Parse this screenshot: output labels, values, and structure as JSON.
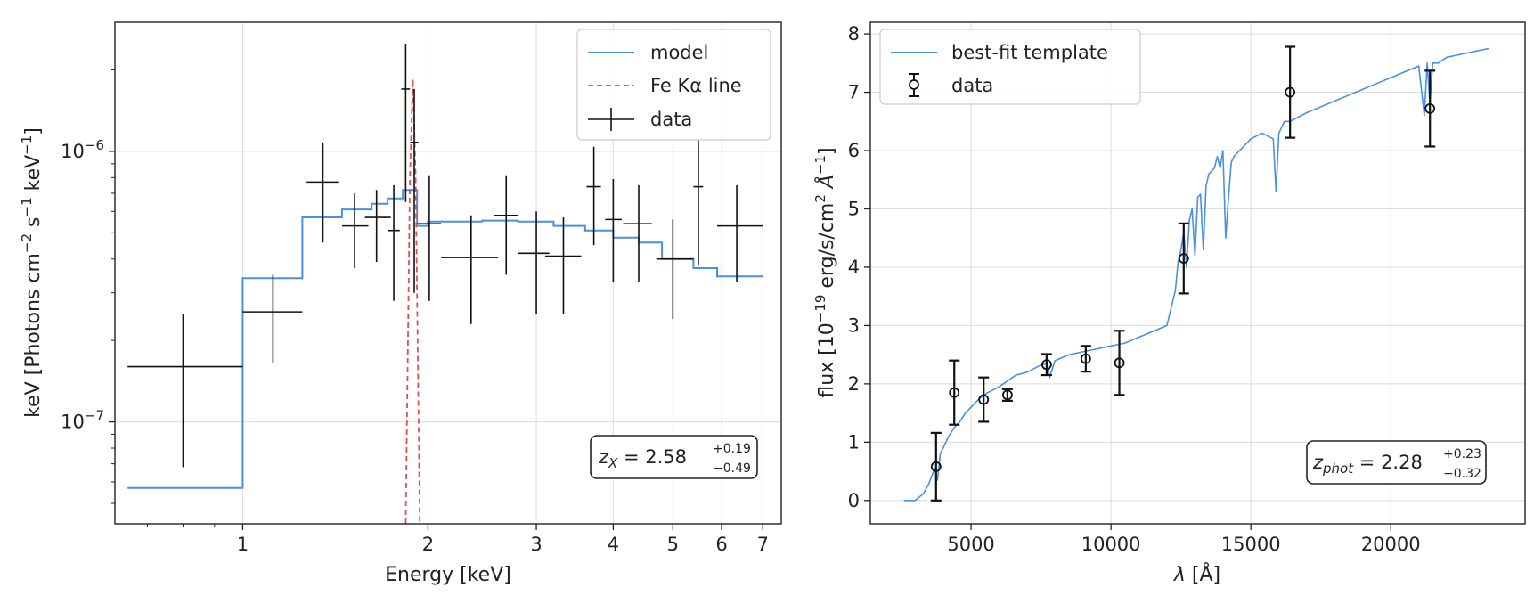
{
  "chart_data": [
    {
      "type": "line",
      "xlabel": "Energy [keV]",
      "ylabel_main": "keV [Photons cm",
      "ylabel_exp1": "−2",
      "ylabel_mid": " s",
      "ylabel_exp2": "−1",
      "ylabel_mid2": " keV",
      "ylabel_exp3": "−1",
      "ylabel_end": "]",
      "x_scale": "log",
      "y_scale": "log",
      "xlim": [
        0.62,
        7.5
      ],
      "ylim": [
        4.2e-08,
        3e-06
      ],
      "xticks": [
        1,
        2,
        3,
        4,
        5,
        6,
        7
      ],
      "xtick_labels": [
        "1",
        "2",
        "3",
        "4",
        "5",
        "6",
        "7"
      ],
      "yticks": [
        1e-07,
        1e-06
      ],
      "ytick_bases": [
        "10",
        "10"
      ],
      "ytick_exps": [
        "−7",
        "−6"
      ],
      "grid": true,
      "legend_position": "top-right",
      "legend": [
        "model",
        "Fe Kα line",
        "data"
      ],
      "annotation": {
        "lhs": "z",
        "sub": "X",
        "eq": " = 2.58",
        "sup": "+0.19",
        "low": "−0.49"
      },
      "colors": {
        "model": "#4a90e2",
        "line": "#e05050",
        "data": "#111111"
      },
      "model_steps": [
        [
          0.65,
          5.7e-08
        ],
        [
          1.0,
          5.7e-08
        ],
        [
          1.0,
          3.4e-07
        ],
        [
          1.25,
          3.4e-07
        ],
        [
          1.25,
          5.7e-07
        ],
        [
          1.45,
          5.7e-07
        ],
        [
          1.45,
          6.1e-07
        ],
        [
          1.62,
          6.1e-07
        ],
        [
          1.62,
          6.4e-07
        ],
        [
          1.72,
          6.4e-07
        ],
        [
          1.72,
          6.7e-07
        ],
        [
          1.82,
          6.7e-07
        ],
        [
          1.82,
          7.2e-07
        ],
        [
          1.92,
          7.2e-07
        ],
        [
          1.92,
          5.3e-07
        ],
        [
          2.0,
          5.3e-07
        ],
        [
          2.0,
          5.5e-07
        ],
        [
          2.45,
          5.5e-07
        ],
        [
          2.45,
          5.55e-07
        ],
        [
          2.8,
          5.55e-07
        ],
        [
          2.8,
          5.5e-07
        ],
        [
          3.2,
          5.5e-07
        ],
        [
          3.2,
          5.3e-07
        ],
        [
          3.6,
          5.3e-07
        ],
        [
          3.6,
          5.1e-07
        ],
        [
          4.0,
          5.1e-07
        ],
        [
          4.0,
          4.8e-07
        ],
        [
          4.4,
          4.8e-07
        ],
        [
          4.4,
          4.6e-07
        ],
        [
          4.8,
          4.6e-07
        ],
        [
          4.8,
          4e-07
        ],
        [
          5.4,
          4e-07
        ],
        [
          5.4,
          3.7e-07
        ],
        [
          5.9,
          3.7e-07
        ],
        [
          5.9,
          3.45e-07
        ],
        [
          7.0,
          3.45e-07
        ]
      ],
      "fe_line_x": [
        1.84,
        1.87,
        1.89,
        1.91,
        1.94
      ],
      "fe_line_y": [
        4.2e-08,
        8e-07,
        1.85e-06,
        8e-07,
        4.2e-08
      ],
      "data_points": [
        {
          "x": 0.8,
          "xlo": 0.65,
          "xhi": 1.0,
          "y": 1.6e-07,
          "ylo": 6.8e-08,
          "yhi": 2.5e-07
        },
        {
          "x": 1.12,
          "xlo": 1.0,
          "xhi": 1.25,
          "y": 2.55e-07,
          "ylo": 1.65e-07,
          "yhi": 3.5e-07
        },
        {
          "x": 1.35,
          "xlo": 1.27,
          "xhi": 1.43,
          "y": 7.7e-07,
          "ylo": 4.6e-07,
          "yhi": 1.08e-06
        },
        {
          "x": 1.52,
          "xlo": 1.45,
          "xhi": 1.6,
          "y": 5.3e-07,
          "ylo": 3.7e-07,
          "yhi": 7e-07
        },
        {
          "x": 1.65,
          "xlo": 1.58,
          "xhi": 1.74,
          "y": 5.7e-07,
          "ylo": 3.9e-07,
          "yhi": 7.2e-07
        },
        {
          "x": 1.76,
          "xlo": 1.72,
          "xhi": 1.8,
          "y": 5.1e-07,
          "ylo": 2.8e-07,
          "yhi": 7.5e-07
        },
        {
          "x": 1.84,
          "xlo": 1.81,
          "xhi": 1.87,
          "y": 1.7e-06,
          "ylo": 6.5e-07,
          "yhi": 2.5e-06
        },
        {
          "x": 1.9,
          "xlo": 1.87,
          "xhi": 1.93,
          "y": 1.08e-06,
          "ylo": 3e-07,
          "yhi": 1.7e-06
        },
        {
          "x": 2.01,
          "xlo": 1.92,
          "xhi": 2.1,
          "y": 5.4e-07,
          "ylo": 2.8e-07,
          "yhi": 8.1e-07
        },
        {
          "x": 2.35,
          "xlo": 2.1,
          "xhi": 2.6,
          "y": 4.05e-07,
          "ylo": 2.3e-07,
          "yhi": 5.8e-07
        },
        {
          "x": 2.68,
          "xlo": 2.56,
          "xhi": 2.8,
          "y": 5.8e-07,
          "ylo": 3.5e-07,
          "yhi": 8.1e-07
        },
        {
          "x": 3.0,
          "xlo": 2.8,
          "xhi": 3.15,
          "y": 4.2e-07,
          "ylo": 2.5e-07,
          "yhi": 6e-07
        },
        {
          "x": 3.32,
          "xlo": 3.1,
          "xhi": 3.55,
          "y": 4.1e-07,
          "ylo": 2.5e-07,
          "yhi": 5.7e-07
        },
        {
          "x": 3.72,
          "xlo": 3.62,
          "xhi": 3.82,
          "y": 7.4e-07,
          "ylo": 4.5e-07,
          "yhi": 1.04e-06
        },
        {
          "x": 4.0,
          "xlo": 3.88,
          "xhi": 4.13,
          "y": 5.6e-07,
          "ylo": 3.3e-07,
          "yhi": 7.9e-07
        },
        {
          "x": 4.4,
          "xlo": 4.15,
          "xhi": 4.62,
          "y": 5.4e-07,
          "ylo": 3.3e-07,
          "yhi": 7.5e-07
        },
        {
          "x": 5.0,
          "xlo": 4.7,
          "xhi": 5.4,
          "y": 4e-07,
          "ylo": 2.4e-07,
          "yhi": 5.6e-07
        },
        {
          "x": 5.5,
          "xlo": 5.4,
          "xhi": 5.6,
          "y": 7.4e-07,
          "ylo": 3.8e-07,
          "yhi": 1.1e-06
        },
        {
          "x": 6.35,
          "xlo": 5.9,
          "xhi": 7.0,
          "y": 5.3e-07,
          "ylo": 3.3e-07,
          "yhi": 7.5e-07
        }
      ]
    },
    {
      "type": "line",
      "xlabel_sym": "λ",
      "xlabel_unit": " [Å]",
      "ylabel_pre": "flux [10",
      "ylabel_exp1": "−19",
      "ylabel_mid": " erg/s/cm",
      "ylabel_exp2": "2",
      "ylabel_mid2": " Å",
      "ylabel_exp3": "−1",
      "ylabel_end": "]",
      "xlim": [
        1400,
        24800
      ],
      "ylim": [
        -0.4,
        8.2
      ],
      "xticks": [
        5000,
        10000,
        15000,
        20000
      ],
      "xtick_labels": [
        "5000",
        "10000",
        "15000",
        "20000"
      ],
      "yticks": [
        0,
        1,
        2,
        3,
        4,
        5,
        6,
        7,
        8
      ],
      "ytick_labels": [
        "0",
        "1",
        "2",
        "3",
        "4",
        "5",
        "6",
        "7",
        "8"
      ],
      "grid": true,
      "legend_position": "top-left",
      "legend": [
        "best-fit template",
        "data"
      ],
      "annotation": {
        "lhs": "z",
        "sub": "phot",
        "eq": " = 2.28",
        "sup": "+0.23",
        "low": "−0.32"
      },
      "colors": {
        "template": "#4a90e2",
        "data": "#111111"
      },
      "template_x": [
        2600,
        3000,
        3300,
        3500,
        3700,
        3800,
        3900,
        4000,
        4200,
        4400,
        4600,
        4800,
        5000,
        5300,
        5600,
        6000,
        6300,
        6600,
        7000,
        7400,
        7700,
        7800,
        8000,
        8500,
        9000,
        9500,
        10000,
        10500,
        11000,
        11500,
        12000,
        12300,
        12400,
        12500,
        12600,
        12700,
        12800,
        12900,
        13000,
        13100,
        13200,
        13300,
        13400,
        13500,
        13700,
        13800,
        13900,
        14000,
        14100,
        14200,
        14300,
        14400,
        14600,
        15000,
        15400,
        15800,
        15900,
        16000,
        16100,
        16200,
        16400,
        16600,
        16800,
        17000,
        17500,
        18000,
        18500,
        19000,
        19500,
        20000,
        20500,
        21000,
        21200,
        21300,
        21400,
        21500,
        21700,
        22000,
        22500,
        23000,
        23500
      ],
      "template_y": [
        0.0,
        0.0,
        0.12,
        0.3,
        0.55,
        0.35,
        0.8,
        0.9,
        1.1,
        1.25,
        1.35,
        1.5,
        1.6,
        1.75,
        1.85,
        1.95,
        2.05,
        2.15,
        2.2,
        2.3,
        2.35,
        2.1,
        2.4,
        2.5,
        2.55,
        2.6,
        2.65,
        2.7,
        2.8,
        2.9,
        3.0,
        3.6,
        4.1,
        4.3,
        4.6,
        4.0,
        4.8,
        5.0,
        4.2,
        5.2,
        5.25,
        4.3,
        5.4,
        5.6,
        5.7,
        5.9,
        5.7,
        6.0,
        4.5,
        5.2,
        5.8,
        5.9,
        6.0,
        6.2,
        6.3,
        6.2,
        5.3,
        6.3,
        6.4,
        6.5,
        6.5,
        6.55,
        6.6,
        6.65,
        6.75,
        6.85,
        6.95,
        7.05,
        7.15,
        7.25,
        7.35,
        7.45,
        6.6,
        7.5,
        6.8,
        7.5,
        7.5,
        7.6,
        7.65,
        7.7,
        7.75
      ],
      "data_points": [
        {
          "x": 3750,
          "y": 0.58,
          "err": 0.58
        },
        {
          "x": 4400,
          "y": 1.85,
          "err": 0.55
        },
        {
          "x": 5450,
          "y": 1.73,
          "err": 0.38
        },
        {
          "x": 6300,
          "y": 1.81,
          "err": 0.1
        },
        {
          "x": 7700,
          "y": 2.33,
          "err": 0.18
        },
        {
          "x": 9100,
          "y": 2.43,
          "err": 0.22
        },
        {
          "x": 10300,
          "y": 2.36,
          "err": 0.55
        },
        {
          "x": 12600,
          "y": 4.15,
          "err": 0.6
        },
        {
          "x": 16400,
          "y": 7.0,
          "err": 0.78
        },
        {
          "x": 21400,
          "y": 6.72,
          "err": 0.65
        }
      ]
    }
  ]
}
